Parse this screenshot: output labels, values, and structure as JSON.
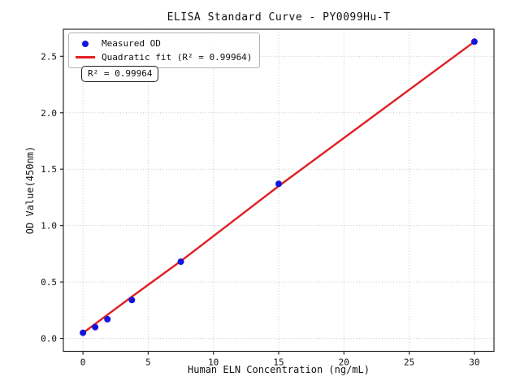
{
  "chart_data": {
    "type": "scatter",
    "title": "ELISA Standard Curve - PY0099Hu-T",
    "xlabel": "Human ELN Concentration (ng/mL)",
    "ylabel": "OD Value(450nm)",
    "xlim": [
      -1.5,
      31.5
    ],
    "ylim": [
      -0.115,
      2.74
    ],
    "x_ticks": [
      0,
      5,
      10,
      15,
      20,
      25,
      30
    ],
    "y_ticks": [
      0.0,
      0.5,
      1.0,
      1.5,
      2.0,
      2.5
    ],
    "grid": "dotted",
    "legend_position": "upper-left",
    "annotation": "R² = 0.99964",
    "r_squared": 0.99964,
    "series": [
      {
        "name": "Measured OD",
        "type": "scatter",
        "color": "#1414dd",
        "x": [
          0,
          0.938,
          1.875,
          3.75,
          7.5,
          15,
          30
        ],
        "y": [
          0.05,
          0.1,
          0.17,
          0.34,
          0.68,
          1.37,
          2.63
        ]
      },
      {
        "name": "Quadratic fit (R² = 0.99964)",
        "type": "line",
        "color": "#e01f24",
        "points": [
          [
            0,
            0.048
          ],
          [
            3.75,
            0.37
          ],
          [
            7.5,
            0.685
          ],
          [
            15,
            1.35
          ],
          [
            30,
            2.63
          ]
        ]
      }
    ]
  },
  "legend": {
    "entries": [
      {
        "label": "Measured OD",
        "marker": "circle",
        "color": "#1414dd"
      },
      {
        "label": "Quadratic fit (R² = 0.99964)",
        "marker": "line",
        "color": "#e01f24"
      }
    ]
  }
}
